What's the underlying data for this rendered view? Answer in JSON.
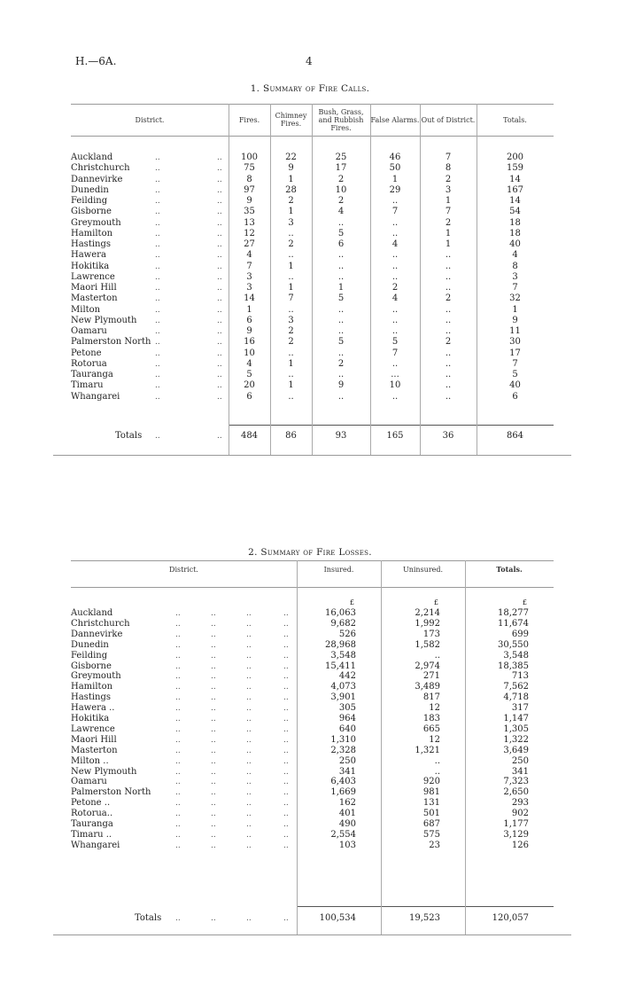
{
  "page": {
    "series_ref": "H.—6A.",
    "page_number": "4"
  },
  "leader": "..",
  "table1": {
    "title_num": "1.",
    "title": "Summary of Fire Calls.",
    "headers": [
      "District.",
      "Fires.",
      "Chimney Fires.",
      "Bush, Grass, and Rubbish Fires.",
      "False Alarms.",
      "Out of District.",
      "Totals."
    ],
    "rows": [
      [
        "Auckland",
        "100",
        "22",
        "25",
        "46",
        "7",
        "200"
      ],
      [
        "Christchurch",
        "75",
        "9",
        "17",
        "50",
        "8",
        "159"
      ],
      [
        "Dannevirke",
        "8",
        "1",
        "2",
        "1",
        "2",
        "14"
      ],
      [
        "Dunedin",
        "97",
        "28",
        "10",
        "29",
        "3",
        "167"
      ],
      [
        "Feilding",
        "9",
        "2",
        "2",
        "..",
        "1",
        "14"
      ],
      [
        "Gisborne",
        "35",
        "1",
        "4",
        "7",
        "7",
        "54"
      ],
      [
        "Greymouth",
        "13",
        "3",
        "..",
        "..",
        "2",
        "18"
      ],
      [
        "Hamilton",
        "12",
        "..",
        "5",
        "..",
        "1",
        "18"
      ],
      [
        "Hastings",
        "27",
        "2",
        "6",
        "4",
        "1",
        "40"
      ],
      [
        "Hawera",
        "4",
        "..",
        "..",
        "..",
        "..",
        "4"
      ],
      [
        "Hokitika",
        "7",
        "1",
        "..",
        "..",
        "..",
        "8"
      ],
      [
        "Lawrence",
        "3",
        "..",
        "..",
        "..",
        "..",
        "3"
      ],
      [
        "Maori Hill",
        "3",
        "1",
        "1",
        "2",
        "..",
        "7"
      ],
      [
        "Masterton",
        "14",
        "7",
        "5",
        "4",
        "2",
        "32"
      ],
      [
        "Milton",
        "1",
        "..",
        "..",
        "..",
        "..",
        "1"
      ],
      [
        "New Plymouth",
        "6",
        "3",
        "..",
        "..",
        "..",
        "9"
      ],
      [
        "Oamaru",
        "9",
        "2",
        "..",
        "..",
        "..",
        "11"
      ],
      [
        "Palmerston North",
        "16",
        "2",
        "5",
        "5",
        "2",
        "30"
      ],
      [
        "Petone",
        "10",
        "..",
        "..",
        "7",
        "..",
        "17"
      ],
      [
        "Rotorua",
        "4",
        "1",
        "2",
        "..",
        "..",
        "7"
      ],
      [
        "Tauranga",
        "5",
        "..",
        "..",
        "...",
        "..",
        "5"
      ],
      [
        "Timaru",
        "20",
        "1",
        "9",
        "10",
        "..",
        "40"
      ],
      [
        "Whangarei",
        "6",
        "..",
        "..",
        "..",
        "..",
        "6"
      ]
    ],
    "totals": [
      "Totals",
      "484",
      "86",
      "93",
      "165",
      "36",
      "864"
    ]
  },
  "table2": {
    "title_num": "2.",
    "title": "Summary of Fire Losses.",
    "headers": [
      "District.",
      "Insured.",
      "Uninsured.",
      "Totals."
    ],
    "currency": [
      "£",
      "£",
      "£"
    ],
    "rows": [
      [
        "Auckland",
        "16,063",
        "2,214",
        "18,277"
      ],
      [
        "Christchurch",
        "9,682",
        "1,992",
        "11,674"
      ],
      [
        "Dannevirke",
        "526",
        "173",
        "699"
      ],
      [
        "Dunedin",
        "28,968",
        "1,582",
        "30,550"
      ],
      [
        "Feilding",
        "3,548",
        "..",
        "3,548"
      ],
      [
        "Gisborne",
        "15,411",
        "2,974",
        "18,385"
      ],
      [
        "Greymouth",
        "442",
        "271",
        "713"
      ],
      [
        "Hamilton",
        "4,073",
        "3,489",
        "7,562"
      ],
      [
        "Hastings",
        "3,901",
        "817",
        "4,718"
      ],
      [
        "Hawera ..",
        "305",
        "12",
        "317"
      ],
      [
        "Hokitika",
        "964",
        "183",
        "1,147"
      ],
      [
        "Lawrence",
        "640",
        "665",
        "1,305"
      ],
      [
        "Maori Hill",
        "1,310",
        "12",
        "1,322"
      ],
      [
        "Masterton",
        "2,328",
        "1,321",
        "3,649"
      ],
      [
        "Milton ..",
        "250",
        "..",
        "250"
      ],
      [
        "New Plymouth",
        "341",
        "..",
        "341"
      ],
      [
        "Oamaru",
        "6,403",
        "920",
        "7,323"
      ],
      [
        "Palmerston North",
        "1,669",
        "981",
        "2,650"
      ],
      [
        "Petone ..",
        "162",
        "131",
        "293"
      ],
      [
        "Rotorua..",
        "401",
        "501",
        "902"
      ],
      [
        "Tauranga",
        "490",
        "687",
        "1,177"
      ],
      [
        "Timaru ..",
        "2,554",
        "575",
        "3,129"
      ],
      [
        "Whangarei",
        "103",
        "23",
        "126"
      ]
    ],
    "totals": [
      "Totals",
      "100,534",
      "19,523",
      "120,057"
    ]
  }
}
